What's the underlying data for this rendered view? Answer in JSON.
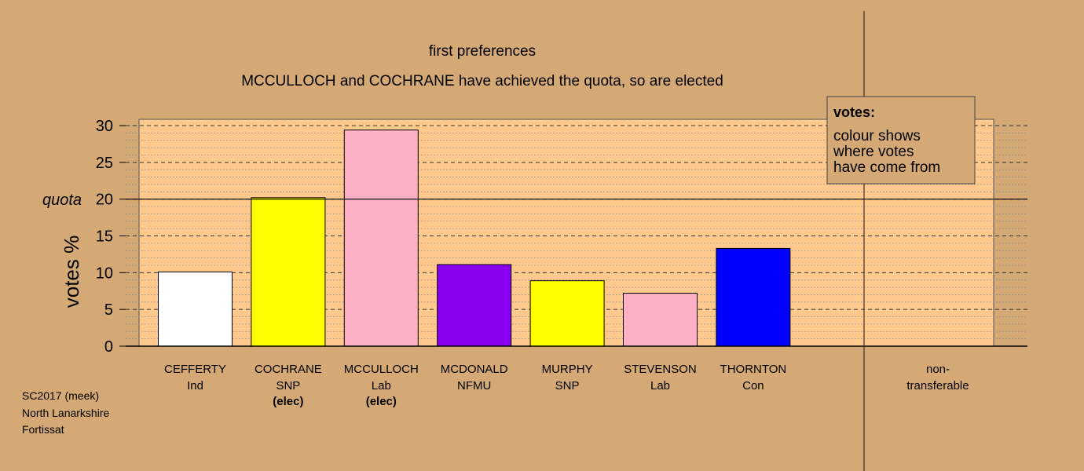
{
  "chart_data": {
    "type": "bar",
    "title": "first preferences",
    "subtitle": "MCCULLOCH and COCHRANE have achieved the quota, so are elected",
    "ylabel": "votes %",
    "ylim": [
      0,
      30
    ],
    "yticks": [
      0,
      5,
      10,
      15,
      20,
      25,
      30
    ],
    "quota": 20,
    "quota_label": "quota",
    "grid": true,
    "categories": [
      {
        "name": "CEFFERTY",
        "party": "Ind",
        "note": "",
        "value": 10.1,
        "color": "#ffffff"
      },
      {
        "name": "COCHRANE",
        "party": "SNP",
        "note": "(elec)",
        "value": 20.2,
        "color": "#ffff00"
      },
      {
        "name": "MCCULLOCH",
        "party": "Lab",
        "note": "(elec)",
        "value": 29.4,
        "color": "#ffb0c4"
      },
      {
        "name": "MCDONALD",
        "party": "NFMU",
        "note": "",
        "value": 11.1,
        "color": "#8800ee"
      },
      {
        "name": "MURPHY",
        "party": "SNP",
        "note": "",
        "value": 8.9,
        "color": "#ffff00"
      },
      {
        "name": "STEVENSON",
        "party": "Lab",
        "note": "",
        "value": 7.2,
        "color": "#ffb0c4"
      },
      {
        "name": "THORNTON",
        "party": "Con",
        "note": "",
        "value": 13.3,
        "color": "#0000ff"
      }
    ],
    "nontransferable": {
      "line1": "non-",
      "line2": "transferable",
      "value": 0
    },
    "legend": {
      "title": "votes:",
      "lines": [
        "colour shows",
        "where votes",
        "have come from"
      ],
      "placement": "top-right"
    }
  },
  "footer": {
    "lines": [
      "SC2017 (meek)",
      "North Lanarkshire",
      "Fortissat"
    ]
  },
  "colors": {
    "background": "#d4a976",
    "plot_background": "#ffc88c",
    "legend_background": "#d4a976"
  }
}
